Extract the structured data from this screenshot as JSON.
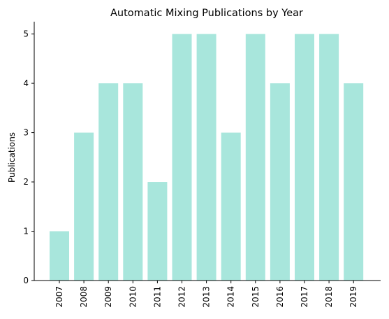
{
  "chart_data": {
    "type": "bar",
    "title": "Automatic Mixing Publications by Year",
    "xlabel": "",
    "ylabel": "Publications",
    "categories": [
      "2007",
      "2008",
      "2009",
      "2010",
      "2011",
      "2012",
      "2013",
      "2014",
      "2015",
      "2016",
      "2017",
      "2018",
      "2019"
    ],
    "values": [
      1,
      3,
      4,
      4,
      2,
      5,
      5,
      3,
      5,
      4,
      5,
      5,
      4
    ],
    "ylim": [
      0,
      5.25
    ],
    "yticks": [
      0,
      1,
      2,
      3,
      4,
      5
    ],
    "bar_color": "#a8e6dc",
    "grid": false,
    "legend": "none"
  }
}
